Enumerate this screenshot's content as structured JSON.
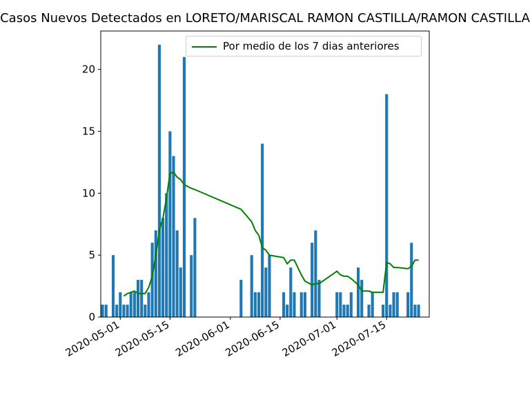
{
  "chart_data": {
    "type": "bar",
    "title": "Casos Nuevos Detectados en LORETO/MARISCAL RAMON CASTILLA/RAMON CASTILLA",
    "xlabel": "",
    "ylabel": "",
    "ylim": [
      0,
      23.1
    ],
    "grid": false,
    "legend_position": "top-right",
    "x_ticks": [
      "2020-05-01",
      "2020-05-15",
      "2020-06-01",
      "2020-06-15",
      "2020-07-01",
      "2020-07-15"
    ],
    "y_ticks": [
      "0",
      "5",
      "10",
      "15",
      "20"
    ],
    "bar_color": "#1f77b4",
    "line_color": "#008000",
    "bars": {
      "dates": [
        "2020-04-26",
        "2020-04-27",
        "2020-04-29",
        "2020-04-30",
        "2020-05-01",
        "2020-05-02",
        "2020-05-03",
        "2020-05-04",
        "2020-05-05",
        "2020-05-06",
        "2020-05-07",
        "2020-05-08",
        "2020-05-09",
        "2020-05-10",
        "2020-05-11",
        "2020-05-12",
        "2020-05-13",
        "2020-05-14",
        "2020-05-15",
        "2020-05-16",
        "2020-05-17",
        "2020-05-18",
        "2020-05-19",
        "2020-05-21",
        "2020-05-22",
        "2020-06-04",
        "2020-06-07",
        "2020-06-08",
        "2020-06-09",
        "2020-06-10",
        "2020-06-11",
        "2020-06-12",
        "2020-06-16",
        "2020-06-17",
        "2020-06-18",
        "2020-06-19",
        "2020-06-21",
        "2020-06-22",
        "2020-06-24",
        "2020-06-25",
        "2020-06-26",
        "2020-07-01",
        "2020-07-02",
        "2020-07-03",
        "2020-07-04",
        "2020-07-05",
        "2020-07-07",
        "2020-07-08",
        "2020-07-10",
        "2020-07-11",
        "2020-07-14",
        "2020-07-15",
        "2020-07-16",
        "2020-07-17",
        "2020-07-18",
        "2020-07-21",
        "2020-07-22",
        "2020-07-23",
        "2020-07-24"
      ],
      "values": [
        1,
        1,
        5,
        1,
        2,
        1,
        1,
        2,
        2,
        3,
        3,
        1,
        2,
        6,
        7,
        22,
        8,
        10,
        15,
        13,
        7,
        4,
        21,
        5,
        8,
        3,
        5,
        2,
        2,
        14,
        4,
        5,
        2,
        1,
        4,
        2,
        2,
        2,
        6,
        7,
        3,
        2,
        2,
        1,
        1,
        2,
        4,
        3,
        1,
        2,
        1,
        18,
        1,
        2,
        2,
        2,
        6,
        1,
        1
      ]
    },
    "series": [
      {
        "name": "Por medio de los 7 dias anteriores",
        "x": [
          "2020-05-02",
          "2020-05-03",
          "2020-05-04",
          "2020-05-05",
          "2020-05-06",
          "2020-05-07",
          "2020-05-08",
          "2020-05-09",
          "2020-05-10",
          "2020-05-11",
          "2020-05-12",
          "2020-05-13",
          "2020-05-14",
          "2020-05-15",
          "2020-05-16",
          "2020-05-17",
          "2020-05-18",
          "2020-05-19",
          "2020-05-21",
          "2020-05-22",
          "2020-06-04",
          "2020-06-07",
          "2020-06-08",
          "2020-06-09",
          "2020-06-10",
          "2020-06-11",
          "2020-06-12",
          "2020-06-16",
          "2020-06-17",
          "2020-06-18",
          "2020-06-19",
          "2020-06-21",
          "2020-06-22",
          "2020-06-24",
          "2020-06-25",
          "2020-06-26",
          "2020-07-01",
          "2020-07-02",
          "2020-07-03",
          "2020-07-04",
          "2020-07-05",
          "2020-07-07",
          "2020-07-08",
          "2020-07-10",
          "2020-07-11",
          "2020-07-14",
          "2020-07-15",
          "2020-07-16",
          "2020-07-17",
          "2020-07-18",
          "2020-07-21",
          "2020-07-22",
          "2020-07-23",
          "2020-07-24"
        ],
        "values": [
          1.7,
          1.9,
          2.0,
          2.1,
          1.9,
          1.9,
          1.9,
          2.4,
          3.3,
          5.0,
          7.0,
          8.0,
          9.6,
          11.6,
          11.7,
          11.3,
          11.1,
          10.7,
          10.4,
          10.3,
          8.7,
          7.7,
          7.0,
          6.6,
          5.6,
          5.4,
          5.0,
          4.8,
          4.3,
          4.6,
          4.6,
          3.4,
          2.9,
          2.6,
          2.7,
          2.7,
          3.7,
          3.4,
          3.3,
          3.3,
          3.1,
          2.6,
          2.1,
          2.1,
          2.0,
          2.0,
          4.4,
          4.3,
          4.0,
          4.0,
          3.9,
          4.1,
          4.6,
          4.6
        ]
      }
    ]
  }
}
